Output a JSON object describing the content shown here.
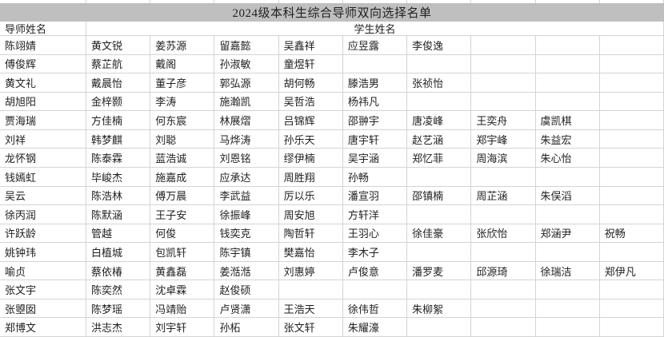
{
  "title": "2024级本科生综合导师双向选择名单",
  "headers": {
    "mentor": "导师姓名",
    "students": "学生姓名"
  },
  "colors": {
    "title_bg": "#bfbfbf",
    "grid_line": "#d4d4d4",
    "text": "#1f1f1f",
    "bg": "#ffffff"
  },
  "table": {
    "student_columns": 9,
    "rows": [
      {
        "mentor": "陈翊婧",
        "students": [
          "黄文锐",
          "姜苏源",
          "留嘉懿",
          "吴鑫祥",
          "应昱露",
          "李俊逸"
        ]
      },
      {
        "mentor": "傅俊辉",
        "students": [
          "蔡芷航",
          "戴阁",
          "孙淑敏",
          "童煜轩"
        ]
      },
      {
        "mentor": "黄文礼",
        "students": [
          "戴晨怡",
          "董子彦",
          "郭弘源",
          "胡何畅",
          "滕浩男",
          "张祯怡"
        ]
      },
      {
        "mentor": "胡旭阳",
        "students": [
          "金梓颢",
          "李涛",
          "施瀚凯",
          "吴哲浩",
          "杨祎凡"
        ]
      },
      {
        "mentor": "贾海瑞",
        "students": [
          "方佳楠",
          "何东宸",
          "林展熠",
          "吕锦辉",
          "邵翀宇",
          "唐凌峰",
          "王奕舟",
          "虞凯棋"
        ]
      },
      {
        "mentor": "刘祥",
        "students": [
          "韩梦麒",
          "刘聪",
          "马烨涛",
          "孙乐天",
          "唐宇轩",
          "赵艺涵",
          "郑宇峰",
          "朱益宏"
        ]
      },
      {
        "mentor": "龙怀钢",
        "students": [
          "陈泰霖",
          "蓝浩诚",
          "刘恩铭",
          "缪伊楠",
          "吴宇涵",
          "郑忆菲",
          "周海滨",
          "朱心怡"
        ]
      },
      {
        "mentor": "钱嫣虹",
        "students": [
          "毕峻杰",
          "施嘉成",
          "应承达",
          "周胜翔",
          "孙畅"
        ]
      },
      {
        "mentor": "吴云",
        "students": [
          "陈浩林",
          "傅万晨",
          "李武益",
          "厉以乐",
          "潘宣羽",
          "邵镇楠",
          "周芷涵",
          "朱俣滔"
        ]
      },
      {
        "mentor": "徐丙润",
        "students": [
          "陈默涵",
          "王子安",
          "徐振峰",
          "周安旭",
          "方轩洋"
        ]
      },
      {
        "mentor": "许跃龄",
        "students": [
          "管越",
          "何俊",
          "钱奕克",
          "陶哲轩",
          "王羽心",
          "徐佳豪",
          "张欣怡",
          "郑涵尹",
          "祝畅"
        ]
      },
      {
        "mentor": "姚钟玮",
        "students": [
          "白植城",
          "包凯轩",
          "陈宇镇",
          "樊嘉怡",
          "李木子"
        ]
      },
      {
        "mentor": "喻贞",
        "students": [
          "蔡依椿",
          "黄鑫磊",
          "姜湉湉",
          "刘惠婷",
          "卢俊意",
          "潘罗麦",
          "邱源琦",
          "徐瑞洁",
          "郑伊凡"
        ]
      },
      {
        "mentor": "张文宇",
        "students": [
          "陈奕然",
          "沈卓霖",
          "赵俊硕"
        ]
      },
      {
        "mentor": "张曌囡",
        "students": [
          "陈梦瑶",
          "冯靖贻",
          "卢贤潇",
          "王浩天",
          "徐伟哲",
          "朱柳絮"
        ]
      },
      {
        "mentor": "郑博文",
        "students": [
          "洪志杰",
          "刘宇轩",
          "孙柘",
          "张文轩",
          "朱耀濠"
        ]
      }
    ]
  }
}
